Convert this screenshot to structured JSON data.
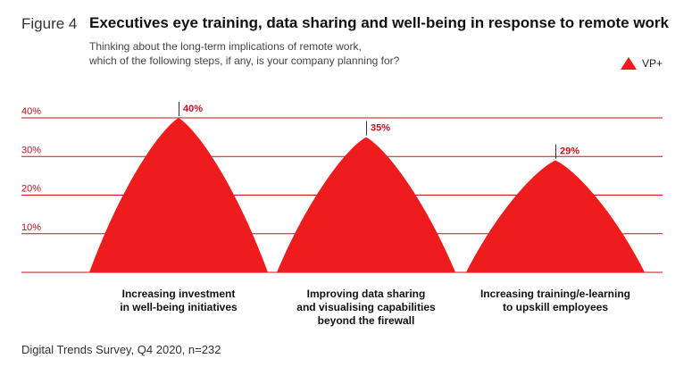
{
  "header": {
    "figure_label": "Figure 4",
    "title": "Executives eye training, data sharing and well-being in response to remote work",
    "subtitle_line1": "Thinking about the long-term implications of remote work,",
    "subtitle_line2": "which of the following steps, if any, is your company planning for?"
  },
  "legend": {
    "label": "VP+",
    "color": "#ee1c1c"
  },
  "footer": {
    "source": "Digital Trends Survey, Q4 2020, n=232"
  },
  "chart_data": {
    "type": "area",
    "title": "Executives eye training, data sharing and well-being in response to remote work",
    "xlabel": "",
    "ylabel": "",
    "ylim": [
      0,
      40
    ],
    "yticks": [
      "10%",
      "20%",
      "30%",
      "40%"
    ],
    "ytick_values": [
      10,
      20,
      30,
      40
    ],
    "grid": true,
    "legend_position": "top-right",
    "categories": [
      "Increasing investment in well-being initiatives",
      "Improving data sharing and visualising capabilities beyond the firewall",
      "Increasing training/e-learning to upskill employees"
    ],
    "category_lines": [
      [
        "Increasing investment",
        "in well-being initiatives"
      ],
      [
        "Improving data sharing",
        "and visualising capabilities",
        "beyond the firewall"
      ],
      [
        "Increasing training/e-learning",
        "to upskill employees"
      ]
    ],
    "series": [
      {
        "name": "VP+",
        "values": [
          40,
          35,
          29
        ],
        "labels": [
          "40%",
          "35%",
          "29%"
        ]
      }
    ],
    "colors": {
      "fill": "#ee1c1c",
      "grid": "#c8101e",
      "tick_text": "#c8101e"
    }
  }
}
